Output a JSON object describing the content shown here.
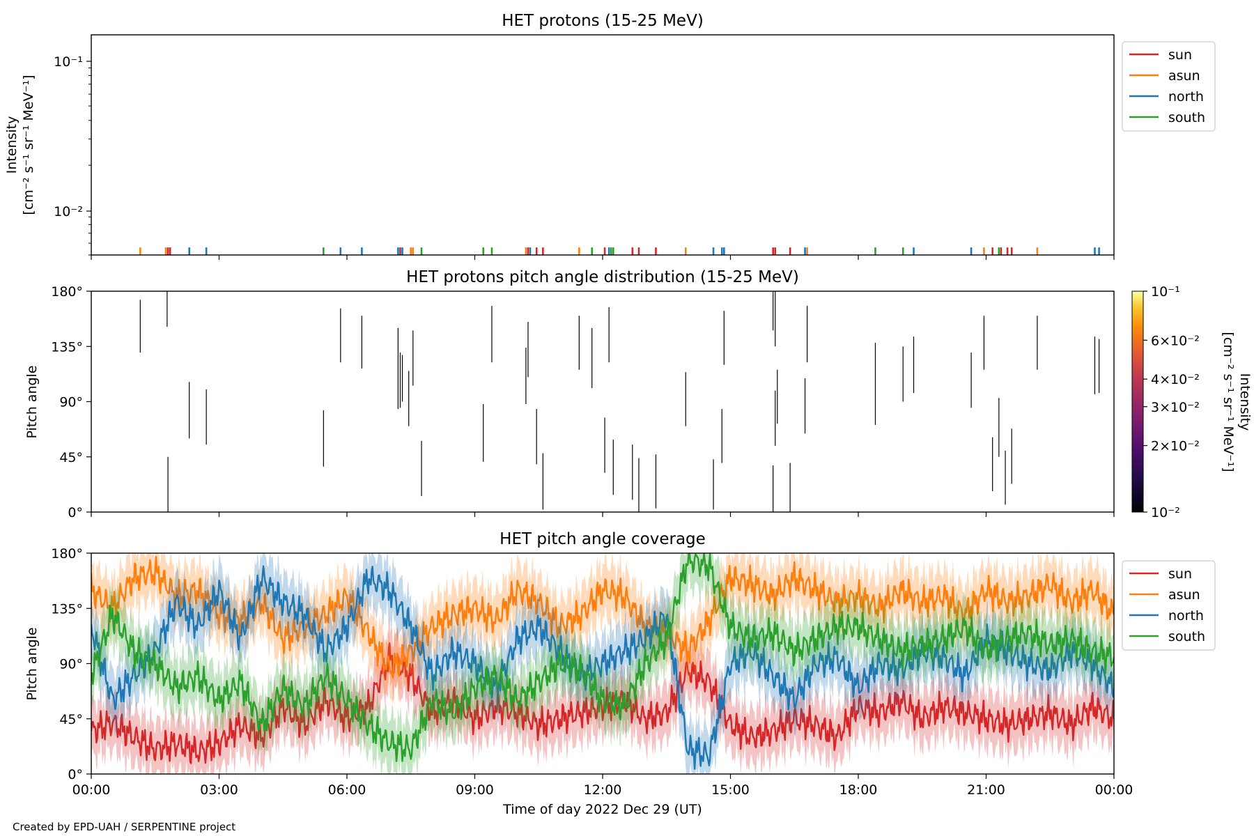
{
  "footer": {
    "credit": "Created by EPD-UAH / SERPENTINE project"
  },
  "colors": {
    "sun": "#d62728",
    "asun": "#ff7f0e",
    "north": "#1f77b4",
    "south": "#2ca02c"
  },
  "chart_data": [
    {
      "type": "line",
      "title": "HET protons (15-25 MeV)",
      "ylabel_line1": "Intensity",
      "ylabel_line2": "[cm⁻² s⁻¹ sr⁻¹ MeV⁻¹]",
      "yscale": "log",
      "ylim": [
        0.005,
        0.15
      ],
      "xlim_hours": [
        0,
        24
      ],
      "ytick_labels": [
        "10⁻¹",
        "10⁻²"
      ],
      "legend": {
        "placement": "outside-top-right",
        "entries": [
          "sun",
          "asun",
          "north",
          "south"
        ]
      },
      "series": [
        {
          "name": "sun",
          "color": "#d62728",
          "events": [
            {
              "x": 1.8,
              "y": 0.0055
            },
            {
              "x": 1.85,
              "y": 0.0055
            },
            {
              "x": 7.25,
              "y": 0.0055
            },
            {
              "x": 10.25,
              "y": 0.0055
            },
            {
              "x": 10.45,
              "y": 0.0055
            },
            {
              "x": 10.6,
              "y": 0.0055
            },
            {
              "x": 12.05,
              "y": 0.0055
            },
            {
              "x": 12.7,
              "y": 0.0055
            },
            {
              "x": 12.85,
              "y": 0.0055
            },
            {
              "x": 13.25,
              "y": 0.0055
            },
            {
              "x": 16.0,
              "y": 0.0055
            },
            {
              "x": 16.05,
              "y": 0.0055
            },
            {
              "x": 16.4,
              "y": 0.0055
            },
            {
              "x": 21.15,
              "y": 0.0055
            },
            {
              "x": 21.35,
              "y": 0.0055
            },
            {
              "x": 21.5,
              "y": 0.0055
            },
            {
              "x": 21.6,
              "y": 0.0055
            }
          ]
        },
        {
          "name": "asun",
          "color": "#ff7f0e",
          "events": [
            {
              "x": 1.15,
              "y": 0.0055
            },
            {
              "x": 1.75,
              "y": 0.0055
            },
            {
              "x": 7.5,
              "y": 0.0055
            },
            {
              "x": 7.55,
              "y": 0.0055
            },
            {
              "x": 10.2,
              "y": 0.0055
            },
            {
              "x": 11.45,
              "y": 0.0055
            },
            {
              "x": 13.95,
              "y": 0.0055
            },
            {
              "x": 16.8,
              "y": 0.0055
            },
            {
              "x": 20.95,
              "y": 0.0055
            },
            {
              "x": 22.2,
              "y": 0.0055
            }
          ]
        },
        {
          "name": "north",
          "color": "#1f77b4",
          "events": [
            {
              "x": 2.3,
              "y": 0.0055
            },
            {
              "x": 2.7,
              "y": 0.0055
            },
            {
              "x": 5.85,
              "y": 0.0055
            },
            {
              "x": 6.35,
              "y": 0.0055
            },
            {
              "x": 7.2,
              "y": 0.0055
            },
            {
              "x": 7.3,
              "y": 0.0055
            },
            {
              "x": 10.3,
              "y": 0.0055
            },
            {
              "x": 12.15,
              "y": 0.0055
            },
            {
              "x": 14.6,
              "y": 0.0055
            },
            {
              "x": 14.8,
              "y": 0.0055
            },
            {
              "x": 14.85,
              "y": 0.0055
            },
            {
              "x": 16.75,
              "y": 0.0055
            },
            {
              "x": 19.3,
              "y": 0.0055
            },
            {
              "x": 20.65,
              "y": 0.0055
            },
            {
              "x": 23.55,
              "y": 0.0055
            },
            {
              "x": 23.65,
              "y": 0.0055
            }
          ]
        },
        {
          "name": "south",
          "color": "#2ca02c",
          "events": [
            {
              "x": 5.45,
              "y": 0.0055
            },
            {
              "x": 7.75,
              "y": 0.0055
            },
            {
              "x": 9.2,
              "y": 0.0055
            },
            {
              "x": 9.4,
              "y": 0.0055
            },
            {
              "x": 11.75,
              "y": 0.0055
            },
            {
              "x": 12.2,
              "y": 0.0055
            },
            {
              "x": 12.25,
              "y": 0.0055
            },
            {
              "x": 18.4,
              "y": 0.0055
            },
            {
              "x": 19.05,
              "y": 0.0055
            },
            {
              "x": 21.3,
              "y": 0.0055
            }
          ]
        }
      ]
    },
    {
      "type": "heatmap",
      "title": "HET protons pitch angle distribution (15-25 MeV)",
      "ylabel": "Pitch angle",
      "ylim": [
        0,
        180
      ],
      "yticks": [
        "0°",
        "45°",
        "90°",
        "135°",
        "180°"
      ],
      "xlim_hours": [
        0,
        24
      ],
      "colorbar": {
        "label_line1": "Intensity",
        "label_line2": "[cm⁻² s⁻¹ sr⁻¹ MeV⁻¹]",
        "scale": "log",
        "range": [
          0.01,
          0.1
        ],
        "tick_values": [
          0.1,
          0.06,
          0.04,
          0.03,
          0.02,
          0.01
        ],
        "tick_labels": [
          "10⁻¹",
          "6×10⁻²",
          "4×10⁻²",
          "3×10⁻²",
          "2×10⁻²",
          "10⁻²"
        ]
      },
      "segments": [
        {
          "x": 1.15,
          "y0": 130,
          "y1": 173
        },
        {
          "x": 1.78,
          "y0": 151,
          "y1": 180
        },
        {
          "x": 1.8,
          "y0": 0,
          "y1": 45
        },
        {
          "x": 2.3,
          "y0": 60,
          "y1": 106
        },
        {
          "x": 2.7,
          "y0": 55,
          "y1": 100
        },
        {
          "x": 5.45,
          "y0": 37,
          "y1": 83
        },
        {
          "x": 5.85,
          "y0": 122,
          "y1": 166
        },
        {
          "x": 6.35,
          "y0": 117,
          "y1": 160
        },
        {
          "x": 7.2,
          "y0": 84,
          "y1": 150
        },
        {
          "x": 7.25,
          "y0": 85,
          "y1": 130
        },
        {
          "x": 7.3,
          "y0": 90,
          "y1": 128
        },
        {
          "x": 7.45,
          "y0": 70,
          "y1": 115
        },
        {
          "x": 7.55,
          "y0": 103,
          "y1": 148
        },
        {
          "x": 7.75,
          "y0": 13,
          "y1": 58
        },
        {
          "x": 9.2,
          "y0": 41,
          "y1": 88
        },
        {
          "x": 9.4,
          "y0": 122,
          "y1": 168
        },
        {
          "x": 10.2,
          "y0": 88,
          "y1": 134
        },
        {
          "x": 10.25,
          "y0": 110,
          "y1": 155
        },
        {
          "x": 10.45,
          "y0": 39,
          "y1": 84
        },
        {
          "x": 10.6,
          "y0": 2,
          "y1": 48
        },
        {
          "x": 11.45,
          "y0": 116,
          "y1": 160
        },
        {
          "x": 11.75,
          "y0": 101,
          "y1": 150
        },
        {
          "x": 12.05,
          "y0": 32,
          "y1": 77
        },
        {
          "x": 12.15,
          "y0": 122,
          "y1": 167
        },
        {
          "x": 12.25,
          "y0": 14,
          "y1": 59
        },
        {
          "x": 12.7,
          "y0": 10,
          "y1": 55
        },
        {
          "x": 12.85,
          "y0": 0,
          "y1": 44
        },
        {
          "x": 13.25,
          "y0": 3,
          "y1": 47
        },
        {
          "x": 13.95,
          "y0": 70,
          "y1": 114
        },
        {
          "x": 14.6,
          "y0": 2,
          "y1": 43
        },
        {
          "x": 14.8,
          "y0": 40,
          "y1": 84
        },
        {
          "x": 14.85,
          "y0": 120,
          "y1": 164
        },
        {
          "x": 16.0,
          "y0": 0,
          "y1": 38
        },
        {
          "x": 16.0,
          "y0": 148,
          "y1": 180
        },
        {
          "x": 16.05,
          "y0": 135,
          "y1": 180
        },
        {
          "x": 16.05,
          "y0": 54,
          "y1": 99
        },
        {
          "x": 16.1,
          "y0": 72,
          "y1": 116
        },
        {
          "x": 16.4,
          "y0": 0,
          "y1": 40
        },
        {
          "x": 16.75,
          "y0": 64,
          "y1": 109
        },
        {
          "x": 16.8,
          "y0": 122,
          "y1": 168
        },
        {
          "x": 18.4,
          "y0": 71,
          "y1": 138
        },
        {
          "x": 19.05,
          "y0": 90,
          "y1": 135
        },
        {
          "x": 19.3,
          "y0": 97,
          "y1": 143
        },
        {
          "x": 20.65,
          "y0": 85,
          "y1": 130
        },
        {
          "x": 20.95,
          "y0": 116,
          "y1": 160
        },
        {
          "x": 21.15,
          "y0": 17,
          "y1": 61
        },
        {
          "x": 21.3,
          "y0": 45,
          "y1": 93
        },
        {
          "x": 21.45,
          "y0": 6,
          "y1": 50
        },
        {
          "x": 21.6,
          "y0": 23,
          "y1": 68
        },
        {
          "x": 22.2,
          "y0": 116,
          "y1": 160
        },
        {
          "x": 23.55,
          "y0": 96,
          "y1": 143
        },
        {
          "x": 23.65,
          "y0": 97,
          "y1": 141
        }
      ]
    },
    {
      "type": "line",
      "title": "HET pitch angle coverage",
      "ylabel": "Pitch angle",
      "xlabel": "Time of day 2022 Dec 29 (UT)",
      "ylim": [
        0,
        180
      ],
      "yticks": [
        "0°",
        "45°",
        "90°",
        "135°",
        "180°"
      ],
      "xlim_hours": [
        0,
        24
      ],
      "xticks": [
        "00:00",
        "03:00",
        "06:00",
        "09:00",
        "12:00",
        "15:00",
        "18:00",
        "21:00",
        "00:00"
      ],
      "legend": {
        "placement": "outside-top-right",
        "entries": [
          "sun",
          "asun",
          "north",
          "south"
        ]
      },
      "band_halfwidth_deg": 22,
      "series": [
        {
          "name": "sun",
          "color": "#d62728",
          "x": [
            0,
            0.5,
            1,
            1.5,
            2,
            2.5,
            3,
            3.5,
            4,
            4.5,
            5,
            5.5,
            6,
            6.5,
            7,
            7.5,
            8,
            8.5,
            9,
            9.5,
            10,
            10.5,
            11,
            11.5,
            12,
            12.5,
            13,
            13.5,
            14,
            14.5,
            15,
            15.5,
            16,
            16.5,
            17,
            17.5,
            18,
            18.5,
            19,
            19.5,
            20,
            20.5,
            21,
            21.5,
            22,
            22.5,
            23,
            23.5,
            24
          ],
          "y": [
            35,
            42,
            30,
            20,
            25,
            18,
            25,
            40,
            30,
            55,
            40,
            60,
            45,
            55,
            95,
            80,
            50,
            60,
            45,
            55,
            50,
            40,
            45,
            50,
            55,
            60,
            45,
            50,
            85,
            75,
            40,
            30,
            35,
            45,
            40,
            30,
            55,
            50,
            60,
            45,
            55,
            50,
            45,
            40,
            45,
            50,
            40,
            55,
            45
          ]
        },
        {
          "name": "asun",
          "color": "#ff7f0e",
          "x": [
            0,
            0.5,
            1,
            1.5,
            2,
            2.5,
            3,
            3.5,
            4,
            4.5,
            5,
            5.5,
            6,
            6.5,
            7,
            7.5,
            8,
            8.5,
            9,
            9.5,
            10,
            10.5,
            11,
            11.5,
            12,
            12.5,
            13,
            13.5,
            14,
            14.5,
            15,
            15.5,
            16,
            16.5,
            17,
            17.5,
            18,
            18.5,
            19,
            19.5,
            20,
            20.5,
            21,
            21.5,
            22,
            22.5,
            23,
            23.5,
            24
          ],
          "y": [
            150,
            135,
            160,
            165,
            145,
            150,
            130,
            125,
            140,
            110,
            120,
            130,
            145,
            115,
            85,
            100,
            120,
            130,
            135,
            125,
            150,
            140,
            120,
            130,
            150,
            145,
            120,
            115,
            100,
            125,
            160,
            155,
            145,
            160,
            150,
            140,
            145,
            135,
            150,
            140,
            145,
            130,
            150,
            140,
            145,
            155,
            140,
            150,
            130
          ]
        },
        {
          "name": "north",
          "color": "#1f77b4",
          "x": [
            0,
            0.5,
            1,
            1.5,
            2,
            2.5,
            3,
            3.5,
            4,
            4.5,
            5,
            5.5,
            6,
            6.5,
            7,
            7.5,
            8,
            8.5,
            9,
            9.5,
            10,
            10.5,
            11,
            11.5,
            12,
            12.5,
            13,
            13.5,
            14,
            14.5,
            15,
            15.5,
            16,
            16.5,
            17,
            17.5,
            18,
            18.5,
            19,
            19.5,
            20,
            20.5,
            21,
            21.5,
            22,
            22.5,
            23,
            23.5,
            24
          ],
          "y": [
            120,
            60,
            80,
            100,
            140,
            120,
            150,
            110,
            160,
            140,
            130,
            100,
            120,
            160,
            150,
            120,
            80,
            100,
            90,
            70,
            110,
            120,
            100,
            80,
            90,
            100,
            110,
            130,
            20,
            15,
            90,
            100,
            80,
            60,
            90,
            95,
            70,
            90,
            85,
            100,
            95,
            80,
            110,
            100,
            90,
            85,
            100,
            90,
            70
          ]
        },
        {
          "name": "south",
          "color": "#2ca02c",
          "x": [
            0,
            0.5,
            1,
            1.5,
            2,
            2.5,
            3,
            3.5,
            4,
            4.5,
            5,
            5.5,
            6,
            6.5,
            7,
            7.5,
            8,
            8.5,
            9,
            9.5,
            10,
            10.5,
            11,
            11.5,
            12,
            12.5,
            13,
            13.5,
            14,
            14.5,
            15,
            15.5,
            16,
            16.5,
            17,
            17.5,
            18,
            18.5,
            19,
            19.5,
            20,
            20.5,
            21,
            21.5,
            22,
            22.5,
            23,
            23.5,
            24
          ],
          "y": [
            80,
            130,
            100,
            90,
            70,
            80,
            60,
            75,
            40,
            70,
            55,
            80,
            60,
            40,
            25,
            20,
            60,
            50,
            70,
            80,
            60,
            75,
            90,
            85,
            60,
            55,
            90,
            110,
            175,
            170,
            120,
            110,
            115,
            100,
            110,
            120,
            120,
            110,
            100,
            105,
            110,
            120,
            100,
            110,
            115,
            105,
            110,
            100,
            95
          ]
        }
      ]
    }
  ]
}
